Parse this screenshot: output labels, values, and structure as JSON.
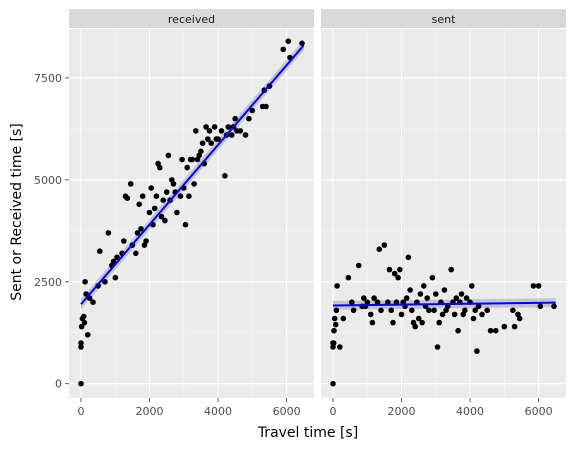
{
  "chart_data": {
    "type": "scatter",
    "xlabel": "Travel time [s]",
    "ylabel": "Sent or Received time [s]",
    "xlim": [
      -350,
      6800
    ],
    "ylim": [
      -350,
      8700
    ],
    "x_ticks": [
      0,
      2000,
      4000,
      6000
    ],
    "y_ticks": [
      0,
      2500,
      5000,
      7500
    ],
    "grid": true,
    "fit_color": "#0000ff",
    "point_color": "#000000",
    "panels": [
      {
        "name": "received",
        "smooth": {
          "method": "linear",
          "x": [
            0,
            6500
          ],
          "y": [
            1950,
            8300
          ],
          "band": 130
        },
        "points": [
          [
            0,
            0
          ],
          [
            0,
            900
          ],
          [
            0,
            1000
          ],
          [
            20,
            1400
          ],
          [
            40,
            1600
          ],
          [
            80,
            1650
          ],
          [
            100,
            1500
          ],
          [
            120,
            2500
          ],
          [
            150,
            2200
          ],
          [
            200,
            1200
          ],
          [
            250,
            2100
          ],
          [
            350,
            2000
          ],
          [
            500,
            2400
          ],
          [
            550,
            3250
          ],
          [
            700,
            2500
          ],
          [
            800,
            3700
          ],
          [
            900,
            2900
          ],
          [
            950,
            3000
          ],
          [
            1000,
            2600
          ],
          [
            1050,
            3100
          ],
          [
            1200,
            3200
          ],
          [
            1250,
            3500
          ],
          [
            1300,
            4600
          ],
          [
            1350,
            4550
          ],
          [
            1450,
            4900
          ],
          [
            1500,
            3400
          ],
          [
            1600,
            3200
          ],
          [
            1650,
            3700
          ],
          [
            1700,
            4400
          ],
          [
            1750,
            3800
          ],
          [
            1800,
            4600
          ],
          [
            1850,
            3400
          ],
          [
            1900,
            3500
          ],
          [
            2000,
            4200
          ],
          [
            2050,
            4800
          ],
          [
            2100,
            3900
          ],
          [
            2150,
            4300
          ],
          [
            2200,
            4600
          ],
          [
            2250,
            5400
          ],
          [
            2300,
            5300
          ],
          [
            2350,
            4100
          ],
          [
            2400,
            4500
          ],
          [
            2450,
            4000
          ],
          [
            2500,
            4700
          ],
          [
            2550,
            5600
          ],
          [
            2600,
            4500
          ],
          [
            2650,
            5000
          ],
          [
            2700,
            4900
          ],
          [
            2750,
            4700
          ],
          [
            2800,
            4200
          ],
          [
            2900,
            4600
          ],
          [
            2950,
            5500
          ],
          [
            3000,
            4800
          ],
          [
            3050,
            3900
          ],
          [
            3100,
            5300
          ],
          [
            3150,
            4600
          ],
          [
            3200,
            5500
          ],
          [
            3250,
            5500
          ],
          [
            3300,
            4900
          ],
          [
            3350,
            6200
          ],
          [
            3400,
            5500
          ],
          [
            3450,
            5600
          ],
          [
            3500,
            5700
          ],
          [
            3550,
            5900
          ],
          [
            3600,
            5400
          ],
          [
            3650,
            6300
          ],
          [
            3700,
            6000
          ],
          [
            3750,
            6200
          ],
          [
            3800,
            5900
          ],
          [
            3900,
            6300
          ],
          [
            3950,
            6000
          ],
          [
            4000,
            6000
          ],
          [
            4100,
            6200
          ],
          [
            4200,
            5100
          ],
          [
            4250,
            6100
          ],
          [
            4300,
            6300
          ],
          [
            4400,
            6100
          ],
          [
            4450,
            6300
          ],
          [
            4500,
            6500
          ],
          [
            4550,
            6200
          ],
          [
            4650,
            6200
          ],
          [
            4800,
            6100
          ],
          [
            4900,
            6500
          ],
          [
            5000,
            6700
          ],
          [
            5300,
            6800
          ],
          [
            5350,
            7200
          ],
          [
            5400,
            6800
          ],
          [
            5500,
            7300
          ],
          [
            5900,
            8200
          ],
          [
            6050,
            8400
          ],
          [
            6100,
            8000
          ],
          [
            6450,
            8350
          ]
        ]
      },
      {
        "name": "sent",
        "smooth": {
          "method": "linear",
          "x": [
            0,
            6500
          ],
          "y": [
            1920,
            1990
          ],
          "band": 110
        },
        "points": [
          [
            0,
            0
          ],
          [
            0,
            900
          ],
          [
            0,
            1000
          ],
          [
            20,
            1000
          ],
          [
            30,
            1300
          ],
          [
            50,
            1600
          ],
          [
            80,
            1450
          ],
          [
            100,
            1800
          ],
          [
            120,
            2400
          ],
          [
            200,
            900
          ],
          [
            300,
            1600
          ],
          [
            450,
            2600
          ],
          [
            550,
            2000
          ],
          [
            600,
            1800
          ],
          [
            750,
            2900
          ],
          [
            850,
            1900
          ],
          [
            900,
            2100
          ],
          [
            950,
            1900
          ],
          [
            1000,
            2000
          ],
          [
            1100,
            1700
          ],
          [
            1150,
            1500
          ],
          [
            1200,
            2100
          ],
          [
            1300,
            2000
          ],
          [
            1350,
            3300
          ],
          [
            1400,
            1800
          ],
          [
            1500,
            3400
          ],
          [
            1600,
            2000
          ],
          [
            1650,
            2800
          ],
          [
            1700,
            1800
          ],
          [
            1750,
            1500
          ],
          [
            1800,
            2700
          ],
          [
            1850,
            2000
          ],
          [
            1900,
            2600
          ],
          [
            1950,
            2800
          ],
          [
            2000,
            1700
          ],
          [
            2050,
            2000
          ],
          [
            2100,
            1900
          ],
          [
            2150,
            2100
          ],
          [
            2200,
            3100
          ],
          [
            2250,
            2300
          ],
          [
            2300,
            1800
          ],
          [
            2350,
            1500
          ],
          [
            2400,
            1400
          ],
          [
            2450,
            2000
          ],
          [
            2500,
            1600
          ],
          [
            2550,
            2200
          ],
          [
            2600,
            1500
          ],
          [
            2650,
            2400
          ],
          [
            2700,
            1900
          ],
          [
            2750,
            2100
          ],
          [
            2800,
            1800
          ],
          [
            2900,
            2600
          ],
          [
            2950,
            1800
          ],
          [
            3000,
            2200
          ],
          [
            3050,
            900
          ],
          [
            3100,
            1500
          ],
          [
            3150,
            2000
          ],
          [
            3200,
            1700
          ],
          [
            3250,
            2300
          ],
          [
            3300,
            1800
          ],
          [
            3350,
            1900
          ],
          [
            3450,
            2800
          ],
          [
            3500,
            2000
          ],
          [
            3550,
            1700
          ],
          [
            3600,
            2100
          ],
          [
            3650,
            1300
          ],
          [
            3700,
            2000
          ],
          [
            3750,
            2200
          ],
          [
            3800,
            1700
          ],
          [
            3850,
            1800
          ],
          [
            3900,
            2100
          ],
          [
            4000,
            2000
          ],
          [
            4050,
            2400
          ],
          [
            4100,
            1600
          ],
          [
            4150,
            1800
          ],
          [
            4200,
            800
          ],
          [
            4250,
            1900
          ],
          [
            4350,
            1700
          ],
          [
            4500,
            1800
          ],
          [
            4600,
            1300
          ],
          [
            4750,
            1300
          ],
          [
            5000,
            1400
          ],
          [
            5250,
            1800
          ],
          [
            5300,
            1400
          ],
          [
            5400,
            1700
          ],
          [
            5450,
            1600
          ],
          [
            5850,
            2400
          ],
          [
            6000,
            2400
          ],
          [
            6050,
            1900
          ],
          [
            6450,
            1900
          ]
        ]
      }
    ]
  }
}
